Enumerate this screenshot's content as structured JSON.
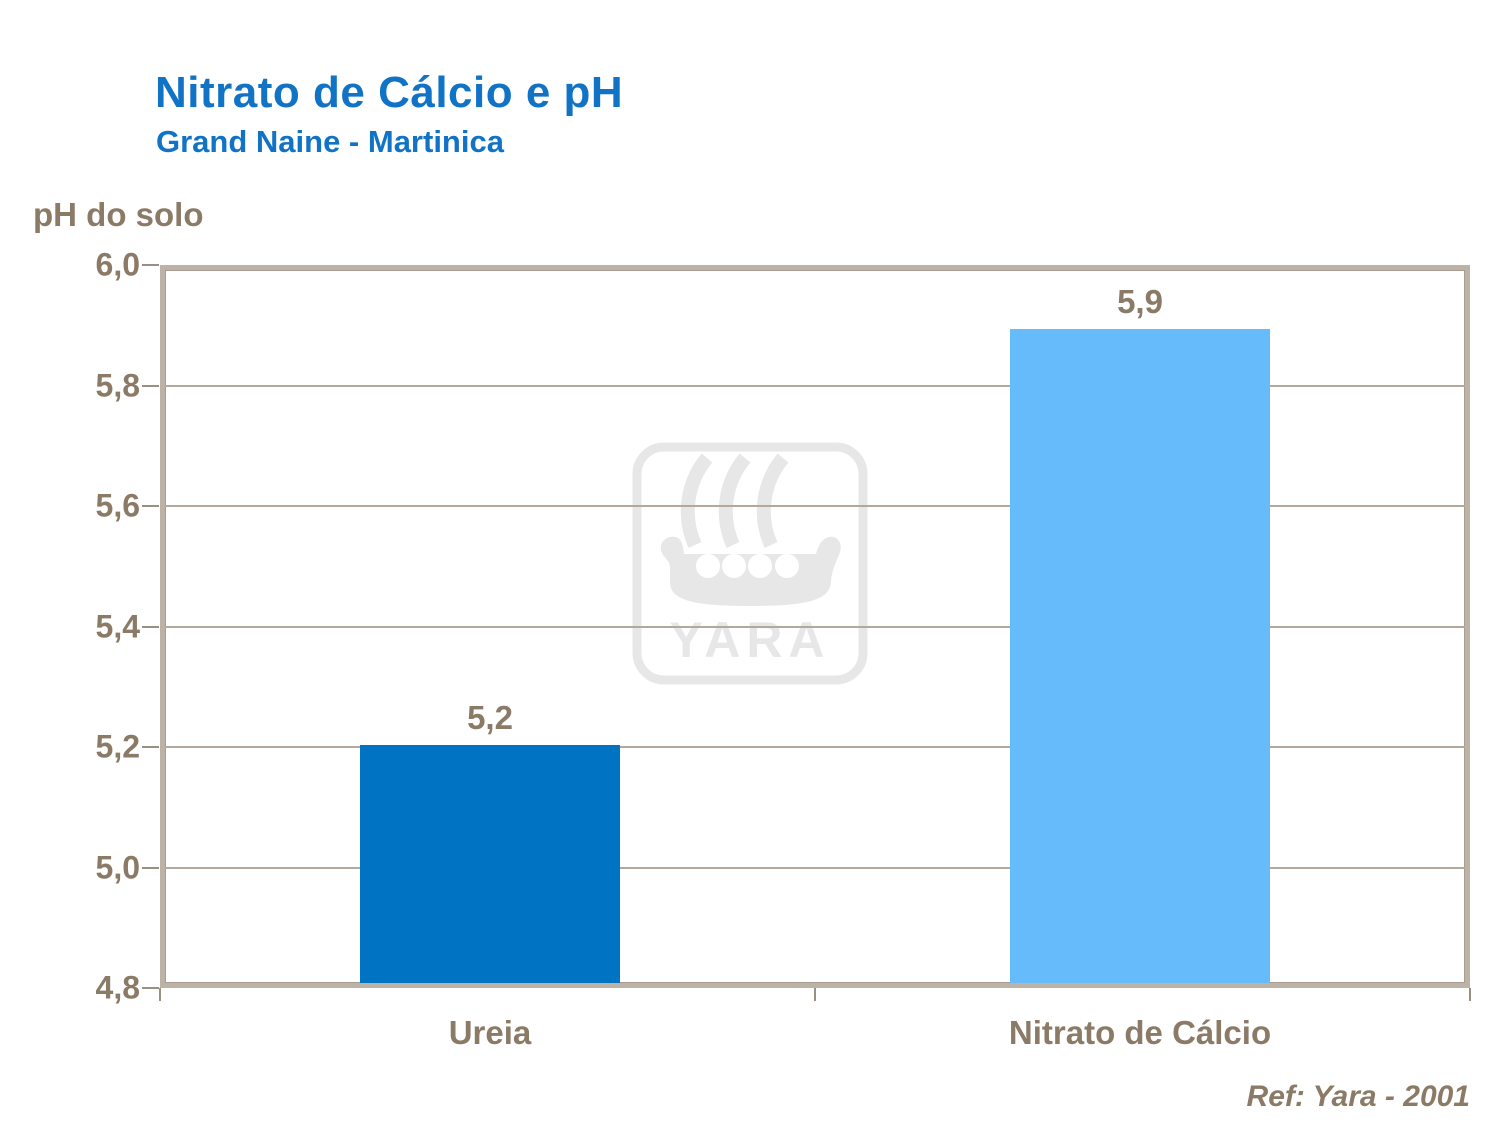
{
  "header": {
    "title": "Nitrato de Cálcio e pH",
    "subtitle": "Grand Naine - Martinica",
    "title_color": "#1173C5"
  },
  "footer": {
    "ref_text": "Ref: Yara - 2001"
  },
  "watermark": {
    "brand": "YARA",
    "color": "#E7E7E7"
  },
  "chart_data": {
    "type": "bar",
    "title": "Nitrato de Cálcio e pH",
    "subtitle": "Grand Naine - Martinica",
    "ylabel": "pH do solo",
    "xlabel": "",
    "categories": [
      "Ureia",
      "Nitrato de Cálcio"
    ],
    "values": [
      5.2,
      5.9
    ],
    "value_labels": [
      "5,2",
      "5,9"
    ],
    "bar_colors": [
      "#0173C3",
      "#66BBFA"
    ],
    "ylim": [
      4.8,
      6.0
    ],
    "yticks": [
      6.0,
      5.8,
      5.6,
      5.4,
      5.2,
      5.0,
      4.8
    ],
    "ytick_labels": [
      "6,0",
      "5,8",
      "5,6",
      "5,4",
      "5,2",
      "5,0",
      "4,8"
    ],
    "grid": true,
    "legend": false,
    "text_color": "#8A7A66",
    "grid_color": "#B3A89B",
    "frame_color": "#BCB2A6"
  }
}
